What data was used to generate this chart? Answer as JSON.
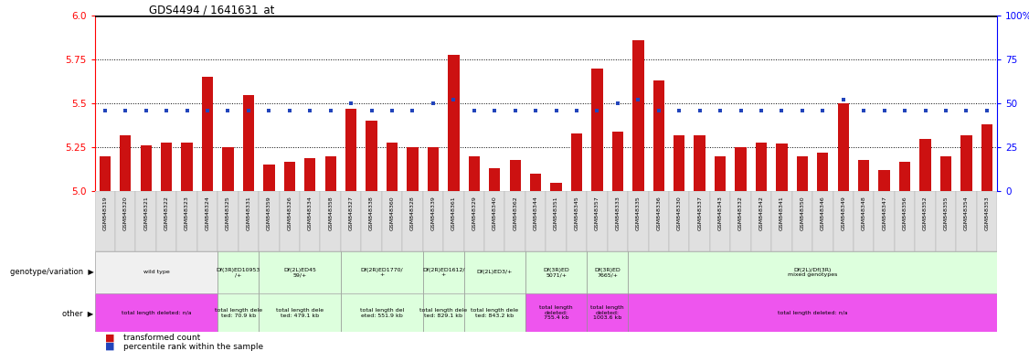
{
  "title": "GDS4494 / 1641631_at",
  "samples": [
    "GSM848319",
    "GSM848320",
    "GSM848321",
    "GSM848322",
    "GSM848323",
    "GSM848324",
    "GSM848325",
    "GSM848331",
    "GSM848359",
    "GSM848326",
    "GSM848334",
    "GSM848358",
    "GSM848327",
    "GSM848338",
    "GSM848360",
    "GSM848328",
    "GSM848339",
    "GSM848361",
    "GSM848329",
    "GSM848340",
    "GSM848362",
    "GSM848344",
    "GSM848351",
    "GSM848345",
    "GSM848357",
    "GSM848333",
    "GSM848335",
    "GSM848336",
    "GSM848330",
    "GSM848337",
    "GSM848343",
    "GSM848332",
    "GSM848342",
    "GSM848341",
    "GSM848350",
    "GSM848346",
    "GSM848349",
    "GSM848348",
    "GSM848347",
    "GSM848356",
    "GSM848352",
    "GSM848355",
    "GSM848354",
    "GSM848353"
  ],
  "bar_values": [
    5.2,
    5.32,
    5.26,
    5.28,
    5.28,
    5.65,
    5.25,
    5.55,
    5.15,
    5.17,
    5.19,
    5.2,
    5.47,
    5.4,
    5.28,
    5.25,
    5.25,
    5.78,
    5.2,
    5.13,
    5.18,
    5.1,
    5.05,
    5.33,
    5.7,
    5.34,
    5.86,
    5.63,
    5.32,
    5.32,
    5.2,
    5.25,
    5.28,
    5.27,
    5.2,
    5.22,
    5.5,
    5.18,
    5.12,
    5.17,
    5.3,
    5.2,
    5.32,
    5.38
  ],
  "percentile_values_raw": [
    46,
    46,
    46,
    46,
    46,
    46,
    46,
    46,
    46,
    46,
    46,
    46,
    50,
    46,
    46,
    46,
    50,
    52,
    46,
    46,
    46,
    46,
    46,
    46,
    46,
    50,
    52,
    46,
    46,
    46,
    46,
    46,
    46,
    46,
    46,
    46,
    52,
    46,
    46,
    46,
    46,
    46,
    46,
    46
  ],
  "ylim": [
    5.0,
    6.0
  ],
  "yticks_left": [
    5.0,
    5.25,
    5.5,
    5.75,
    6.0
  ],
  "yticks_right": [
    0,
    25,
    50,
    75,
    100
  ],
  "hlines": [
    5.25,
    5.5,
    5.75
  ],
  "bar_color": "#cc1111",
  "percentile_color": "#2244bb",
  "geno_groups": [
    {
      "start": 0,
      "end": 5,
      "label": "wild type",
      "color": "#f0f0f0"
    },
    {
      "start": 6,
      "end": 7,
      "label": "Df(3R)ED10953\n/+",
      "color": "#ddffdd"
    },
    {
      "start": 8,
      "end": 11,
      "label": "Df(2L)ED45\n59/+",
      "color": "#ddffdd"
    },
    {
      "start": 12,
      "end": 15,
      "label": "Df(2R)ED1770/\n+",
      "color": "#ddffdd"
    },
    {
      "start": 16,
      "end": 17,
      "label": "Df(2R)ED1612/\n+",
      "color": "#ddffdd"
    },
    {
      "start": 18,
      "end": 20,
      "label": "Df(2L)ED3/+",
      "color": "#ddffdd"
    },
    {
      "start": 21,
      "end": 23,
      "label": "Df(3R)ED\n5071/+",
      "color": "#ddffdd"
    },
    {
      "start": 24,
      "end": 25,
      "label": "Df(3R)ED\n7665/+",
      "color": "#ddffdd"
    },
    {
      "start": 26,
      "end": 43,
      "label": "Df(2L)/Df(3R)\nmixed genotypes",
      "color": "#ddffdd"
    }
  ],
  "other_groups": [
    {
      "start": 0,
      "end": 5,
      "label": "total length deleted: n/a",
      "color": "#ee55ee"
    },
    {
      "start": 6,
      "end": 7,
      "label": "total length dele\nted: 70.9 kb",
      "color": "#ddffdd"
    },
    {
      "start": 8,
      "end": 11,
      "label": "total length dele\nted: 479.1 kb",
      "color": "#ddffdd"
    },
    {
      "start": 12,
      "end": 15,
      "label": "total length del\neted: 551.9 kb",
      "color": "#ddffdd"
    },
    {
      "start": 16,
      "end": 17,
      "label": "total length dele\nted: 829.1 kb",
      "color": "#ddffdd"
    },
    {
      "start": 18,
      "end": 20,
      "label": "total length dele\nted: 843.2 kb",
      "color": "#ddffdd"
    },
    {
      "start": 21,
      "end": 23,
      "label": "total length\ndeleted:\n755.4 kb",
      "color": "#ee55ee"
    },
    {
      "start": 24,
      "end": 25,
      "label": "total length\ndeleted:\n1003.6 kb",
      "color": "#ee55ee"
    },
    {
      "start": 26,
      "end": 43,
      "label": "total length deleted: n/a",
      "color": "#ee55ee"
    }
  ]
}
